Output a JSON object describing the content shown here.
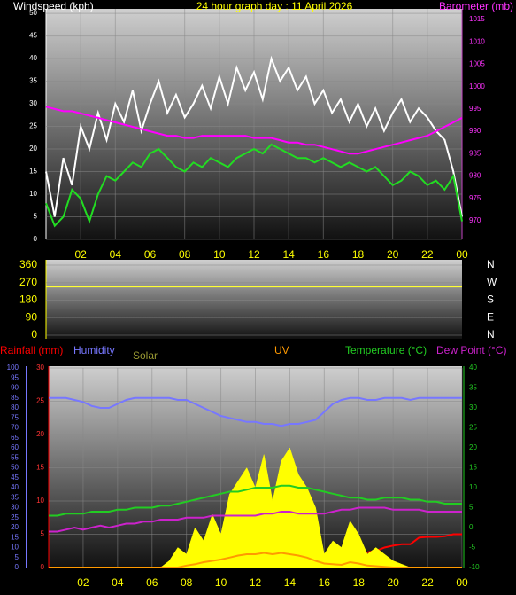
{
  "chart_data": [
    {
      "type": "line",
      "title": "24 hour graph day : 11 April 2026",
      "y_label": "Windspeed (kph)",
      "y2_label": "Barometer (mb)",
      "x": [
        0,
        0.5,
        1,
        1.5,
        2,
        2.5,
        3,
        3.5,
        4,
        4.5,
        5,
        5.5,
        6,
        6.5,
        7,
        7.5,
        8,
        8.5,
        9,
        9.5,
        10,
        10.5,
        11,
        11.5,
        12,
        12.5,
        13,
        13.5,
        14,
        14.5,
        15,
        15.5,
        16,
        16.5,
        17,
        17.5,
        18,
        18.5,
        19,
        19.5,
        20,
        20.5,
        21,
        21.5,
        22,
        22.5,
        23,
        23.5,
        24
      ],
      "xlim": [
        0,
        24
      ],
      "xticks": [
        {
          "value": 2,
          "label": "02"
        },
        {
          "value": 4,
          "label": "04"
        },
        {
          "value": 6,
          "label": "06"
        },
        {
          "value": 8,
          "label": "08"
        },
        10,
        12,
        14,
        16,
        18,
        20,
        22,
        {
          "value": 24,
          "label": "00"
        }
      ],
      "ylim": [
        0,
        51
      ],
      "yticks": [
        0,
        5,
        10,
        15,
        20,
        25,
        30,
        35,
        40,
        45,
        50
      ],
      "y2lim": [
        965.8,
        1017.4
      ],
      "y2ticks": [
        970,
        975,
        980,
        985,
        990,
        995,
        1000,
        1005,
        1010,
        1015
      ],
      "grid": true,
      "series": [
        {
          "color": "#ffffff",
          "values": [
            15,
            5,
            18,
            12,
            25,
            20,
            28,
            22,
            30,
            26,
            33,
            24,
            30,
            35,
            28,
            32,
            27,
            30,
            34,
            29,
            36,
            30,
            38,
            33,
            37,
            31,
            40,
            35,
            38,
            33,
            36,
            30,
            33,
            28,
            31,
            26,
            30,
            25,
            29,
            24,
            28,
            31,
            26,
            29,
            27,
            24,
            22,
            15,
            5
          ]
        },
        {
          "color": "#22dd22",
          "values": [
            8,
            3,
            5,
            11,
            9,
            4,
            10,
            14,
            13,
            15,
            17,
            16,
            19,
            20,
            18,
            16,
            15,
            17,
            16,
            18,
            17,
            16,
            18,
            19,
            20,
            19,
            21,
            20,
            19,
            18,
            18,
            17,
            18,
            17,
            16,
            17,
            16,
            15,
            16,
            14,
            12,
            13,
            15,
            14,
            12,
            13,
            11,
            14,
            4
          ]
        },
        {
          "color": "#ff00ff",
          "axis": "y2",
          "values": [
            995.5,
            995,
            994.5,
            994.5,
            994,
            993.5,
            993,
            992.5,
            992,
            991.5,
            991,
            990.5,
            990,
            989.5,
            989,
            989,
            988.5,
            988.5,
            989,
            989,
            989,
            989,
            989,
            989,
            988.5,
            988.5,
            988.5,
            988,
            987.5,
            987.5,
            987,
            987,
            986.5,
            986,
            985.5,
            985,
            985,
            985.5,
            986,
            986.5,
            987,
            987.5,
            988,
            988.5,
            989,
            990,
            991,
            992,
            993
          ]
        }
      ]
    },
    {
      "type": "line",
      "x": [
        0,
        24
      ],
      "xlim": [
        0,
        24
      ],
      "ylim": [
        0,
        360
      ],
      "yticks": [
        0,
        90,
        180,
        270,
        360
      ],
      "y2ticks": [
        {
          "value": 0,
          "label": "N"
        },
        {
          "value": 90,
          "label": "E"
        },
        {
          "value": 180,
          "label": "S"
        },
        {
          "value": 270,
          "label": "W"
        },
        {
          "value": 360,
          "label": "N"
        }
      ],
      "grid": true,
      "series": [
        {
          "color": "#ffff33",
          "values": [
            250,
            250
          ]
        }
      ]
    },
    {
      "type": "line",
      "x": [
        0,
        0.5,
        1,
        1.5,
        2,
        2.5,
        3,
        3.5,
        4,
        4.5,
        5,
        5.5,
        6,
        6.5,
        7,
        7.5,
        8,
        8.5,
        9,
        9.5,
        10,
        10.5,
        11,
        11.5,
        12,
        12.5,
        13,
        13.5,
        14,
        14.5,
        15,
        15.5,
        16,
        16.5,
        17,
        17.5,
        18,
        18.5,
        19,
        19.5,
        20,
        20.5,
        21,
        21.5,
        22,
        22.5,
        23,
        23.5,
        24
      ],
      "xlim": [
        0,
        24
      ],
      "xticks": [
        {
          "value": 2,
          "label": "02"
        },
        {
          "value": 4,
          "label": "04"
        },
        {
          "value": 6,
          "label": "06"
        },
        {
          "value": 8,
          "label": "08"
        },
        10,
        12,
        14,
        16,
        18,
        20,
        22,
        {
          "value": 24,
          "label": "00"
        }
      ],
      "ylim": [
        0,
        30
      ],
      "yticks": [
        0,
        5,
        10,
        15,
        20,
        25,
        30
      ],
      "y2lim": [
        -10,
        40
      ],
      "y2ticks": [
        -10,
        -5,
        0,
        5,
        10,
        15,
        20,
        25,
        30,
        35,
        40
      ],
      "y3lim": [
        0,
        100
      ],
      "y3ticks": [
        0,
        5,
        10,
        15,
        20,
        25,
        30,
        35,
        40,
        45,
        50,
        55,
        60,
        65,
        70,
        75,
        80,
        85,
        90,
        95,
        100
      ],
      "grid": true,
      "series": [
        {
          "name": "Rainfall (mm)",
          "color": "#ff0000",
          "values": [
            0,
            0,
            0,
            0,
            0,
            0,
            0,
            0,
            0,
            0,
            0,
            0,
            0,
            0,
            0.3,
            0.3,
            0.3,
            0.3,
            0.3,
            0.5,
            0.8,
            0.8,
            0.8,
            0.8,
            0.8,
            0.8,
            0.8,
            0.8,
            0.8,
            0.8,
            0.8,
            0.8,
            1,
            1,
            1.5,
            1.8,
            2,
            2.3,
            2.5,
            3,
            3.3,
            3.5,
            3.5,
            4.5,
            4.6,
            4.6,
            4.7,
            5,
            5
          ]
        },
        {
          "name": "Humidity",
          "color": "#7777ff",
          "axis": "y3",
          "values": [
            85,
            85,
            85,
            84,
            83,
            81,
            80,
            80,
            82,
            84,
            85,
            85,
            85,
            85,
            85,
            84,
            84,
            82,
            80,
            78,
            76,
            75,
            74,
            73,
            73,
            72,
            72,
            71,
            72,
            72,
            73,
            74,
            78,
            82,
            84,
            85,
            85,
            84,
            84,
            85,
            85,
            85,
            84,
            85,
            85,
            85,
            85,
            85,
            85
          ]
        },
        {
          "name": "Solar",
          "color": "#ffff00",
          "area": true,
          "values": [
            0,
            0,
            0,
            0,
            0,
            0,
            0,
            0,
            0,
            0,
            0,
            0,
            0,
            0,
            1,
            3,
            2,
            6,
            4,
            8,
            5,
            11,
            13,
            15,
            12,
            17,
            10,
            16,
            18,
            14,
            12,
            9,
            2,
            4,
            3,
            7,
            5,
            2,
            3,
            2,
            1,
            0.5,
            0,
            0,
            0,
            0,
            0,
            0,
            0
          ]
        },
        {
          "name": "UV",
          "color": "#ff9900",
          "values": [
            0,
            0,
            0,
            0,
            0,
            0,
            0,
            0,
            0,
            0,
            0,
            0,
            0,
            0,
            0,
            0,
            0.3,
            0.5,
            0.8,
            1,
            1.2,
            1.5,
            1.8,
            2,
            2,
            2.2,
            2,
            2.2,
            2,
            1.8,
            1.5,
            1,
            0.6,
            0.5,
            0.4,
            0.8,
            0.6,
            0.3,
            0.2,
            0.1,
            0,
            0,
            0,
            0,
            0,
            0,
            0,
            0,
            0
          ]
        },
        {
          "name": "Temperature (°C)",
          "color": "#22cc22",
          "axis": "y2",
          "values": [
            3,
            3,
            3.5,
            3.5,
            3.5,
            4,
            4,
            4,
            4.5,
            4.5,
            5,
            5,
            5,
            5.5,
            5.5,
            6,
            6.5,
            7,
            7.5,
            8,
            8.5,
            9,
            9,
            9.5,
            10,
            10,
            10,
            10.5,
            10.5,
            10,
            10,
            9.5,
            9,
            8.5,
            8,
            7.5,
            7.5,
            7,
            7,
            7.5,
            7.5,
            7.5,
            7,
            7,
            6.5,
            6.5,
            6,
            6,
            6
          ]
        },
        {
          "name": "Dew Point (°C)",
          "color": "#cc22cc",
          "axis": "y2",
          "values": [
            -1,
            -1,
            -0.5,
            0,
            -0.5,
            0,
            0.5,
            0,
            0.5,
            1,
            1,
            1.5,
            1.5,
            2,
            2,
            2,
            2.5,
            2.5,
            2.5,
            3,
            3,
            3,
            3,
            3,
            3,
            3.5,
            3.5,
            4,
            4,
            3.5,
            3.5,
            3.5,
            3.5,
            4,
            4.5,
            4.5,
            5,
            5,
            5,
            5,
            4.5,
            4.5,
            4.5,
            4.5,
            4,
            4,
            4,
            4,
            4
          ]
        }
      ]
    }
  ]
}
